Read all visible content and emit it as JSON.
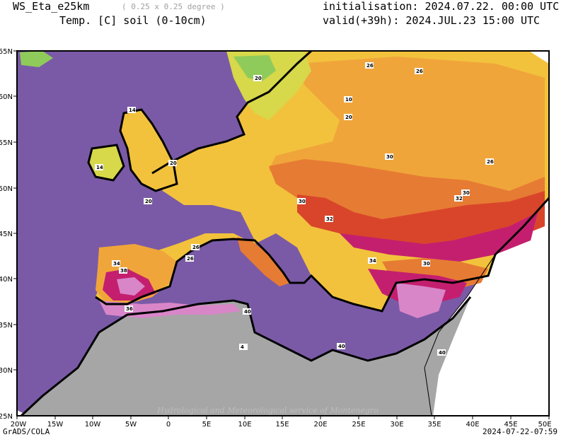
{
  "header": {
    "model": "WS_Eta_e25km",
    "resolution": "( 0.25 x 0.25 degree )",
    "field": "Temp. [C] soil (0-10cm)",
    "initialisation": "initialisation: 2024.07.22. 00:00 UTC",
    "valid": "valid(+39h): 2024.JUL.23 15:00 UTC"
  },
  "axes": {
    "x_ticks": [
      "20W",
      "15W",
      "10W",
      "5W",
      "0",
      "5E",
      "10E",
      "15E",
      "20E",
      "25E",
      "30E",
      "35E",
      "40E",
      "45E",
      "50E"
    ],
    "y_ticks": [
      "65N",
      "60N",
      "55N",
      "50N",
      "45N",
      "40N",
      "35N",
      "30N",
      "25N"
    ]
  },
  "contour_labels": [
    "20",
    "14",
    "26",
    "30",
    "32",
    "34",
    "36",
    "38",
    "40",
    "10",
    "4",
    "16",
    "18"
  ],
  "colors": {
    "sea": "#7a5aa6",
    "land_gray": "#a6a6a6",
    "c10": "#8fcb5a",
    "c14": "#d7d84a",
    "c20": "#f2c23c",
    "c26": "#f0a53a",
    "c30": "#e67b33",
    "c32": "#d9452a",
    "c36": "#c41f6f",
    "c40": "#d986c9"
  },
  "footer": {
    "left": "GrADS/COLA",
    "right": "2024-07-22-07:59",
    "watermark": "Hydrological and Meteorological service of Montenegro"
  }
}
